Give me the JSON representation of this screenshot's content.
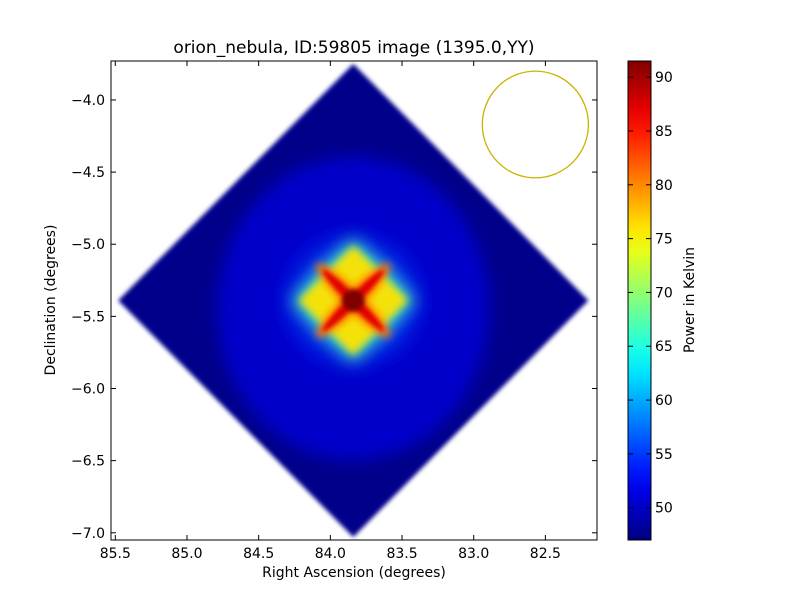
{
  "chart_data": {
    "type": "heatmap",
    "title": "orion_nebula, ID:59805 image (1395.0,YY)",
    "xlabel": "Right Ascension (degrees)",
    "ylabel": "Declination (degrees)",
    "xlim": [
      85.53,
      82.14
    ],
    "ylim": [
      -7.05,
      -3.73
    ],
    "x_reversed": true,
    "x_ticks": [
      85.5,
      85.0,
      84.5,
      84.0,
      83.5,
      83.0,
      82.5
    ],
    "x_tick_labels": [
      "85.5",
      "85.0",
      "84.5",
      "84.0",
      "83.5",
      "83.0",
      "82.5"
    ],
    "y_ticks": [
      -4.0,
      -4.5,
      -5.0,
      -5.5,
      -6.0,
      -6.5,
      -7.0
    ],
    "y_tick_labels": [
      "−4.0",
      "−4.5",
      "−5.0",
      "−5.5",
      "−6.0",
      "−6.5",
      "−7.0"
    ],
    "colormap": "jet",
    "colorbar": {
      "label": "Power in Kelvin",
      "min": 47.0,
      "max": 91.5,
      "ticks": [
        50,
        55,
        60,
        65,
        70,
        75,
        80,
        85,
        90
      ],
      "tick_labels": [
        "50",
        "55",
        "60",
        "65",
        "70",
        "75",
        "80",
        "85",
        "90"
      ]
    },
    "map_region": {
      "shape": "diamond",
      "center": [
        83.84,
        -5.39
      ],
      "vertices": [
        [
          83.84,
          -3.75
        ],
        [
          82.2,
          -5.39
        ],
        [
          83.84,
          -7.03
        ],
        [
          85.48,
          -5.39
        ]
      ],
      "background_value": 47.5
    },
    "peak": {
      "x": 83.84,
      "y": -5.39,
      "value": 91.5
    },
    "beam": {
      "center": [
        82.57,
        -4.17
      ],
      "radius_x_deg": 0.37,
      "radius_y_deg": 0.37,
      "color": "#c8b400"
    }
  }
}
